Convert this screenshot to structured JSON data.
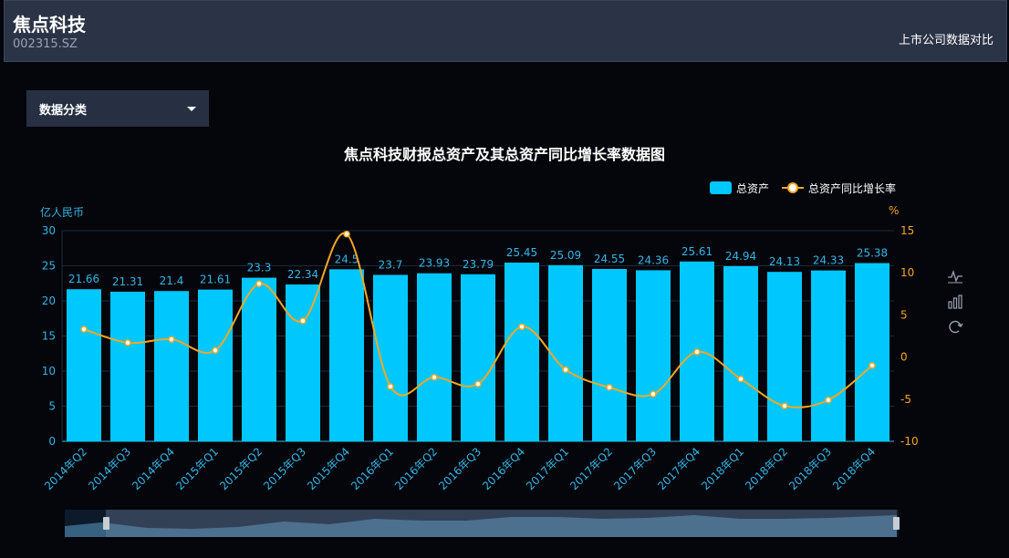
{
  "header": {
    "company": "焦点科技",
    "code": "002315.SZ",
    "compare_link": "上市公司数据对比"
  },
  "filter": {
    "label": "数据分类"
  },
  "toolbox": {
    "icons": [
      "line-chart-icon",
      "bar-chart-icon",
      "refresh-icon"
    ]
  },
  "colors": {
    "bar": "#00c8ff",
    "line": "#f5a623",
    "axis_left": "#33b5e5",
    "axis_right": "#f5a623"
  },
  "chart_data": {
    "type": "bar",
    "title": "焦点科技财报总资产及其总资产同比增长率数据图",
    "categories": [
      "2014年Q2",
      "2014年Q3",
      "2014年Q4",
      "2015年Q1",
      "2015年Q2",
      "2015年Q3",
      "2015年Q4",
      "2016年Q1",
      "2016年Q2",
      "2016年Q3",
      "2016年Q4",
      "2017年Q1",
      "2017年Q2",
      "2017年Q3",
      "2017年Q4",
      "2018年Q1",
      "2018年Q2",
      "2018年Q3",
      "2018年Q4"
    ],
    "series": [
      {
        "name": "总资产",
        "type": "bar",
        "axis": "left",
        "values": [
          21.66,
          21.31,
          21.4,
          21.61,
          23.3,
          22.34,
          24.5,
          23.7,
          23.93,
          23.79,
          25.45,
          25.09,
          24.55,
          24.36,
          25.61,
          24.94,
          24.13,
          24.33,
          25.38
        ],
        "labels": [
          "21.66",
          "21.31",
          "21.4",
          "21.61",
          "23.3",
          "22.34",
          "24.5",
          "23.7",
          "23.93",
          "23.79",
          "25.45",
          "25.09",
          "24.55",
          "24.36",
          "25.61",
          "24.94",
          "24.13",
          "24.33",
          "25.38"
        ]
      },
      {
        "name": "总资产同比增长率",
        "type": "line",
        "axis": "right",
        "values": [
          3.3,
          1.7,
          2.1,
          0.8,
          8.7,
          4.3,
          14.6,
          -3.5,
          -2.4,
          -3.2,
          3.6,
          -1.5,
          -3.6,
          -4.4,
          0.6,
          -2.6,
          -5.8,
          -5.1,
          -1.0
        ]
      }
    ],
    "ylabel_left": "亿人民币",
    "ylabel_right": "%",
    "ylim_left": [
      0,
      30
    ],
    "yticks_left": [
      0,
      5,
      10,
      15,
      20,
      25,
      30
    ],
    "ylim_right": [
      -10,
      15
    ],
    "yticks_right": [
      -10,
      -5,
      0,
      5,
      10,
      15
    ],
    "legend_position": "top-right",
    "grid": true
  }
}
